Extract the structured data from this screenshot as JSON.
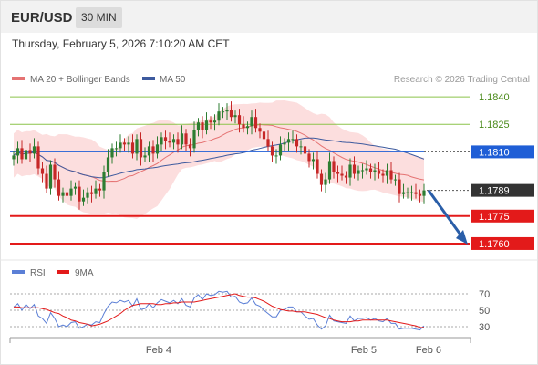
{
  "header": {
    "pair": "EUR/USD",
    "timeframe": "30 MIN"
  },
  "date_line": "Thursday, February 5, 2026 7:10:20 AM CET",
  "legend": {
    "ma20": "MA 20 + Bollinger Bands",
    "ma50": "MA 50",
    "source": "Research © 2026 Trading Central"
  },
  "rsi_legend": {
    "rsi": "RSI",
    "ma9": "9MA"
  },
  "colors": {
    "up": "#2e7d32",
    "down": "#c62828",
    "ma50": "#3d5a9e",
    "ma20": "#e57373",
    "bollinger": "#fbd0d0",
    "resistance": "#8bc34a",
    "support": "#e31a1a",
    "pivot": "#1f5ed6",
    "rsi": "#5b7fd6",
    "ma9": "#e31a1a",
    "arrow": "#2a5ea8"
  },
  "chart_data": [
    {
      "type": "candlestick",
      "title": "EUR/USD 30 MIN",
      "ylim": [
        1.1755,
        1.1848
      ],
      "x_ticks": [
        "Feb 4",
        "Feb 5",
        "Feb 6"
      ],
      "levels": [
        {
          "value": 1.184,
          "label": "1.1840",
          "kind": "resistance"
        },
        {
          "value": 1.1825,
          "label": "1.1825",
          "kind": "resistance"
        },
        {
          "value": 1.181,
          "label": "1.1810",
          "kind": "pivot"
        },
        {
          "value": 1.1789,
          "label": "1.1789",
          "kind": "last"
        },
        {
          "value": 1.1775,
          "label": "1.1775",
          "kind": "support"
        },
        {
          "value": 1.176,
          "label": "1.1760",
          "kind": "support"
        }
      ],
      "last_price": 1.1789,
      "forecast": {
        "from": 1.1789,
        "to": 1.176
      },
      "candles_close": [
        1.1808,
        1.1812,
        1.1806,
        1.1811,
        1.1809,
        1.1813,
        1.1801,
        1.1798,
        1.179,
        1.1803,
        1.1795,
        1.1786,
        1.1788,
        1.1786,
        1.179,
        1.1791,
        1.1783,
        1.1785,
        1.1788,
        1.1787,
        1.179,
        1.1789,
        1.1799,
        1.1807,
        1.1812,
        1.1812,
        1.1815,
        1.1814,
        1.1815,
        1.1809,
        1.1817,
        1.1807,
        1.1808,
        1.1813,
        1.1809,
        1.1814,
        1.1818,
        1.1816,
        1.1815,
        1.1817,
        1.1814,
        1.182,
        1.1814,
        1.1812,
        1.1822,
        1.1826,
        1.1822,
        1.1827,
        1.1826,
        1.1827,
        1.1832,
        1.1832,
        1.1833,
        1.1829,
        1.183,
        1.1825,
        1.1823,
        1.1824,
        1.1829,
        1.1823,
        1.1821,
        1.1817,
        1.1813,
        1.1808,
        1.1808,
        1.1814,
        1.1815,
        1.1817,
        1.1817,
        1.1813,
        1.1813,
        1.1809,
        1.1805,
        1.1806,
        1.1798,
        1.1792,
        1.1795,
        1.1805,
        1.1799,
        1.1798,
        1.1797,
        1.1796,
        1.1803,
        1.1798,
        1.18,
        1.18,
        1.1801,
        1.1799,
        1.18,
        1.1798,
        1.1797,
        1.18,
        1.1795,
        1.1795,
        1.1787,
        1.1788,
        1.1788,
        1.1788,
        1.1787,
        1.1786,
        1.1789
      ]
    },
    {
      "type": "line",
      "title": "RSI",
      "ylim": [
        20,
        80
      ],
      "y_ticks": [
        "70",
        "50",
        "30"
      ],
      "series": [
        {
          "name": "RSI",
          "values": [
            54,
            58,
            50,
            57,
            52,
            57,
            43,
            40,
            34,
            47,
            40,
            30,
            32,
            30,
            35,
            36,
            28,
            30,
            33,
            32,
            36,
            35,
            46,
            55,
            60,
            59,
            62,
            60,
            62,
            55,
            64,
            51,
            52,
            58,
            53,
            59,
            63,
            61,
            59,
            62,
            58,
            64,
            56,
            54,
            65,
            69,
            63,
            70,
            68,
            69,
            73,
            72,
            73,
            66,
            67,
            60,
            58,
            59,
            65,
            57,
            55,
            50,
            46,
            42,
            42,
            50,
            51,
            54,
            54,
            48,
            48,
            43,
            39,
            40,
            32,
            27,
            31,
            44,
            37,
            36,
            35,
            34,
            43,
            37,
            40,
            40,
            41,
            38,
            40,
            37,
            36,
            40,
            34,
            34,
            27,
            28,
            28,
            28,
            27,
            26,
            31
          ]
        },
        {
          "name": "9MA",
          "values": [
            54,
            54,
            53,
            53,
            53,
            53,
            53,
            52,
            51,
            49,
            47,
            46,
            43,
            41,
            38,
            37,
            35,
            34,
            33,
            31,
            32,
            33,
            35,
            37,
            40,
            43,
            46,
            50,
            53,
            56,
            57,
            58,
            58,
            58,
            58,
            57,
            57,
            58,
            58,
            59,
            59,
            60,
            60,
            60,
            60,
            61,
            62,
            63,
            64,
            65,
            66,
            67,
            68,
            69,
            70,
            68,
            67,
            66,
            66,
            65,
            63,
            61,
            58,
            55,
            53,
            51,
            50,
            49,
            49,
            48,
            48,
            48,
            47,
            46,
            45,
            43,
            41,
            40,
            38,
            37,
            36,
            36,
            36,
            37,
            37,
            38,
            38,
            38,
            38,
            38,
            38,
            38,
            37,
            36,
            35,
            34,
            33,
            32,
            31,
            29,
            29
          ]
        }
      ]
    }
  ]
}
